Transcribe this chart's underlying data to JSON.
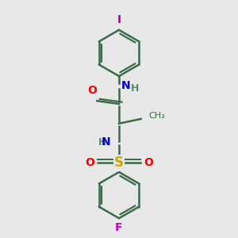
{
  "bg_color": "#e8e8e8",
  "ring_color": "#3a6b4a",
  "bond_color": "#3a6b4a",
  "atom_colors": {
    "O": "#ff0000",
    "N": "#0000cc",
    "S": "#ccaa00",
    "F": "#cc00cc",
    "I": "#aa00aa",
    "H": "#5a8a6a",
    "C": "#3a6b4a"
  },
  "lw": 1.8,
  "figsize": [
    3.0,
    3.0
  ],
  "dpi": 100
}
